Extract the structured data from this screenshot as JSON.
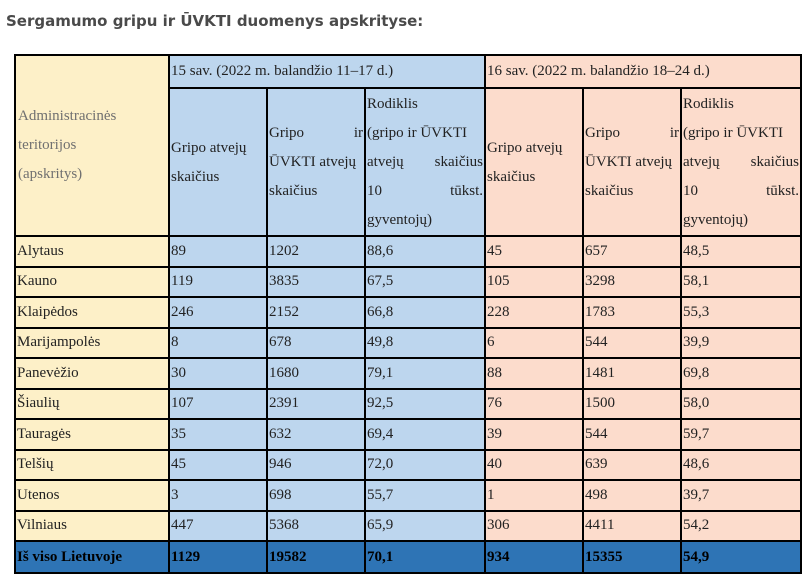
{
  "title": "Sergamumo gripu ir ŪVKTI duomenys apskrityse:",
  "table": {
    "admin_header_lines": [
      "Administracinės",
      "teritorijos",
      "(apskritys)"
    ],
    "periods": [
      {
        "label": "15 sav. (2022 m. balandžio 11–17 d.)"
      },
      {
        "label": "16 sav. (2022 m. balandžio 18–24 d.)"
      }
    ],
    "col_headers": {
      "gripo": [
        "Gripo atvejų",
        "skaičius"
      ],
      "gripo_uvkti": [
        "Gripo ir",
        "ŪVKTI atvejų",
        "skaičius"
      ],
      "rodiklis": [
        "Rodiklis",
        "(gripo ir ŪVKTI",
        "atvejų skaičius",
        "10 tūkst.",
        "gyventojų)"
      ]
    },
    "rows": [
      {
        "name": "Alytaus",
        "w15": [
          "89",
          "1202",
          "88,6"
        ],
        "w16": [
          "45",
          "657",
          "48,5"
        ]
      },
      {
        "name": "Kauno",
        "w15": [
          "119",
          "3835",
          "67,5"
        ],
        "w16": [
          "105",
          "3298",
          "58,1"
        ]
      },
      {
        "name": "Klaipėdos",
        "w15": [
          "246",
          "2152",
          "66,8"
        ],
        "w16": [
          "228",
          "1783",
          "55,3"
        ]
      },
      {
        "name": "Marijampolės",
        "w15": [
          "8",
          "678",
          "49,8"
        ],
        "w16": [
          "6",
          "544",
          "39,9"
        ]
      },
      {
        "name": "Panevėžio",
        "w15": [
          "30",
          "1680",
          "79,1"
        ],
        "w16": [
          "88",
          "1481",
          "69,8"
        ]
      },
      {
        "name": "Šiaulių",
        "w15": [
          "107",
          "2391",
          "92,5"
        ],
        "w16": [
          "76",
          "1500",
          "58,0"
        ]
      },
      {
        "name": "Tauragės",
        "w15": [
          "35",
          "632",
          "69,4"
        ],
        "w16": [
          "39",
          "544",
          "59,7"
        ]
      },
      {
        "name": "Telšių",
        "w15": [
          "45",
          "946",
          "72,0"
        ],
        "w16": [
          "40",
          "639",
          "48,6"
        ]
      },
      {
        "name": "Utenos",
        "w15": [
          "3",
          "698",
          "55,7"
        ],
        "w16": [
          "1",
          "498",
          "39,7"
        ]
      },
      {
        "name": "Vilniaus",
        "w15": [
          "447",
          "5368",
          "65,9"
        ],
        "w16": [
          "306",
          "4411",
          "54,2"
        ]
      }
    ],
    "total": {
      "name": "Iš viso Lietuvoje",
      "w15": [
        "1129",
        "19582",
        "70,1"
      ],
      "w16": [
        "934",
        "15355",
        "54,9"
      ]
    }
  }
}
